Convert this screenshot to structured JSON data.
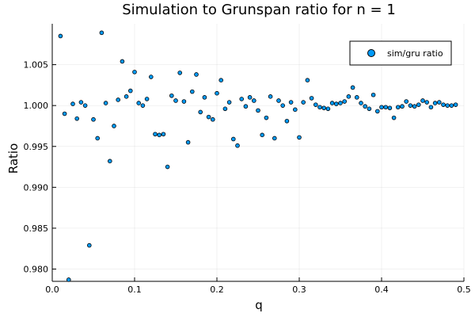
{
  "chart_data": {
    "type": "scatter",
    "title": "Simulation to Grunspan ratio for n = 1",
    "xlabel": "q",
    "ylabel": "Ratio",
    "xlim": [
      0.0,
      0.5
    ],
    "ylim": [
      0.9785,
      1.01
    ],
    "xticks": [
      0.0,
      0.1,
      0.2,
      0.3,
      0.4,
      0.5
    ],
    "xtick_labels": [
      "0.0",
      "0.1",
      "0.2",
      "0.3",
      "0.4",
      "0.5"
    ],
    "yticks": [
      0.98,
      0.985,
      0.99,
      0.995,
      1.0,
      1.005
    ],
    "ytick_labels": [
      "0.980",
      "0.985",
      "0.990",
      "0.995",
      "1.000",
      "1.005"
    ],
    "grid": true,
    "legend_position": "top-right",
    "series": [
      {
        "name": "sim/gru ratio",
        "color": "#009AF9",
        "x": [
          0.01,
          0.015,
          0.02,
          0.025,
          0.03,
          0.035,
          0.04,
          0.045,
          0.05,
          0.055,
          0.06,
          0.065,
          0.07,
          0.075,
          0.08,
          0.085,
          0.09,
          0.095,
          0.1,
          0.105,
          0.11,
          0.115,
          0.12,
          0.125,
          0.13,
          0.135,
          0.14,
          0.145,
          0.15,
          0.155,
          0.16,
          0.165,
          0.17,
          0.175,
          0.18,
          0.185,
          0.19,
          0.195,
          0.2,
          0.205,
          0.21,
          0.215,
          0.22,
          0.225,
          0.23,
          0.235,
          0.24,
          0.245,
          0.25,
          0.255,
          0.26,
          0.265,
          0.27,
          0.275,
          0.28,
          0.285,
          0.29,
          0.295,
          0.3,
          0.305,
          0.31,
          0.315,
          0.32,
          0.325,
          0.33,
          0.335,
          0.34,
          0.345,
          0.35,
          0.355,
          0.36,
          0.365,
          0.37,
          0.375,
          0.38,
          0.385,
          0.39,
          0.395,
          0.4,
          0.405,
          0.41,
          0.415,
          0.42,
          0.425,
          0.43,
          0.435,
          0.44,
          0.445,
          0.45,
          0.455,
          0.46,
          0.465,
          0.47,
          0.475,
          0.48,
          0.485,
          0.49
        ],
        "y": [
          1.0085,
          0.999,
          0.9787,
          1.0002,
          0.9984,
          1.0004,
          1.0,
          0.9829,
          0.9983,
          0.996,
          1.0089,
          1.0003,
          0.9932,
          0.9975,
          1.0007,
          1.0054,
          1.0011,
          1.0018,
          1.0041,
          1.0003,
          1.0,
          1.0008,
          1.0035,
          0.9965,
          0.9964,
          0.9965,
          0.9925,
          1.0012,
          1.0006,
          1.004,
          1.0005,
          0.9955,
          1.0017,
          1.0038,
          0.9992,
          1.001,
          0.9986,
          0.9983,
          1.0015,
          1.0031,
          0.9996,
          1.0004,
          0.9959,
          0.9951,
          1.0008,
          0.9999,
          1.001,
          1.0006,
          0.9994,
          0.9964,
          0.9985,
          1.0011,
          0.996,
          1.0006,
          1.0,
          0.9981,
          1.0004,
          0.9995,
          0.9961,
          1.0004,
          1.0031,
          1.0009,
          1.0001,
          0.9998,
          0.9997,
          0.9996,
          1.0003,
          1.0002,
          1.0003,
          1.0005,
          1.0011,
          1.0022,
          1.001,
          1.0003,
          0.9999,
          0.9996,
          1.0013,
          0.9993,
          0.9998,
          0.9998,
          0.9997,
          0.9985,
          0.9998,
          0.9999,
          1.0005,
          1.0,
          0.9999,
          1.0001,
          1.0006,
          1.0004,
          0.9998,
          1.0003,
          1.0004,
          1.0001,
          1.0,
          1.0,
          1.0001
        ]
      }
    ]
  }
}
